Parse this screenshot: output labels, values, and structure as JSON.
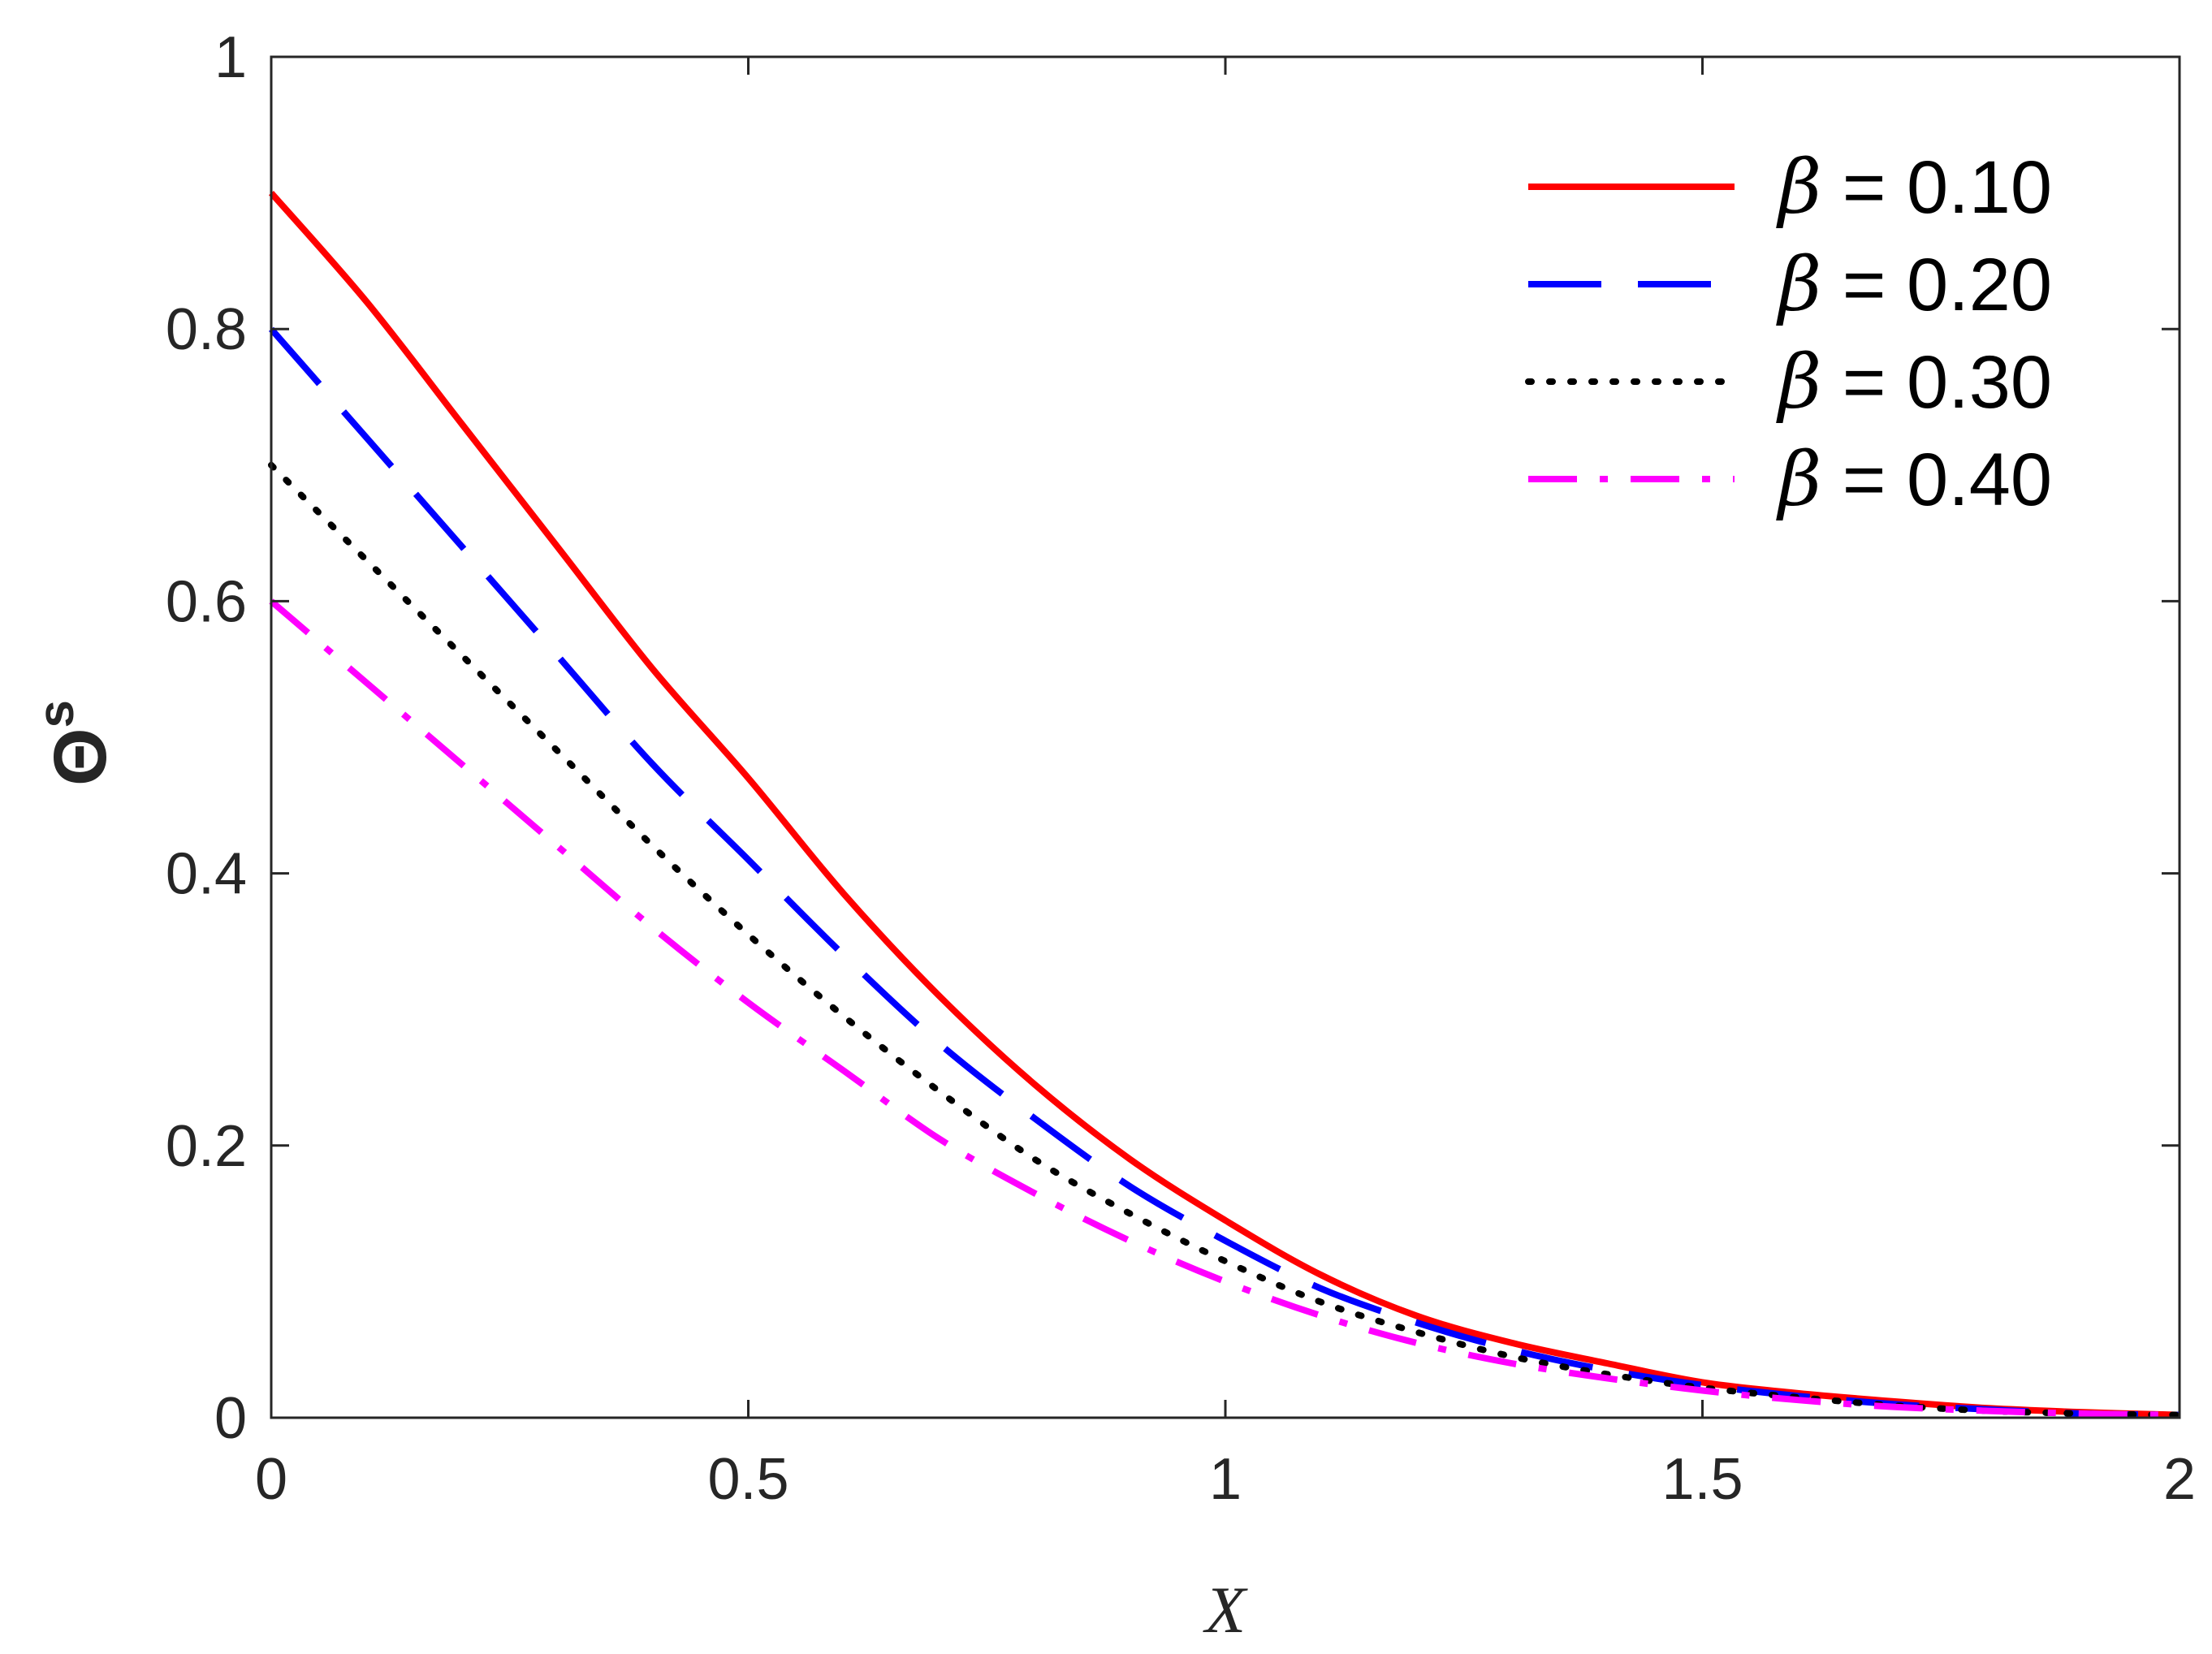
{
  "chart_data": {
    "type": "line",
    "title": "",
    "xlabel": "X",
    "ylabel": "Θ",
    "ylabel_superscript": "s",
    "xlim": [
      0,
      2
    ],
    "ylim": [
      0,
      1
    ],
    "grid": false,
    "legend_position": "top-right",
    "x_ticks": [
      0,
      0.5,
      1,
      1.5,
      2
    ],
    "x_tick_labels": [
      "0",
      "0.5",
      "1",
      "1.5",
      "2"
    ],
    "y_ticks": [
      0,
      0.2,
      0.4,
      0.6,
      0.8,
      1
    ],
    "y_tick_labels": [
      "0",
      "0.2",
      "0.4",
      "0.6",
      "0.8",
      "1"
    ],
    "x": [
      0,
      0.1,
      0.2,
      0.3,
      0.4,
      0.5,
      0.6,
      0.7,
      0.8,
      0.9,
      1.0,
      1.1,
      1.2,
      1.3,
      1.4,
      1.5,
      1.6,
      1.7,
      1.8,
      1.9,
      2.0
    ],
    "series": [
      {
        "name": "β = 0.10",
        "symbol": "β",
        "value_label": "= 0.10",
        "color": "#ff0000",
        "style": "solid",
        "values": [
          0.9,
          0.82,
          0.73,
          0.64,
          0.55,
          0.47,
          0.385,
          0.31,
          0.245,
          0.19,
          0.145,
          0.105,
          0.075,
          0.055,
          0.04,
          0.026,
          0.018,
          0.012,
          0.007,
          0.004,
          0.002
        ]
      },
      {
        "name": "β = 0.20",
        "symbol": "β",
        "value_label": "= 0.20",
        "color": "#0000ff",
        "style": "dashed",
        "values": [
          0.8,
          0.72,
          0.64,
          0.56,
          0.48,
          0.41,
          0.34,
          0.275,
          0.22,
          0.17,
          0.13,
          0.095,
          0.07,
          0.05,
          0.035,
          0.024,
          0.016,
          0.01,
          0.006,
          0.003,
          0.002
        ]
      },
      {
        "name": "β = 0.30",
        "symbol": "β",
        "value_label": "= 0.30",
        "color": "#000000",
        "style": "dotted",
        "values": [
          0.7,
          0.63,
          0.56,
          0.49,
          0.42,
          0.355,
          0.295,
          0.24,
          0.19,
          0.15,
          0.115,
          0.085,
          0.063,
          0.045,
          0.032,
          0.022,
          0.015,
          0.009,
          0.005,
          0.003,
          0.002
        ]
      },
      {
        "name": "β = 0.40",
        "symbol": "β",
        "value_label": "= 0.40",
        "color": "#ff00ff",
        "style": "dashdot",
        "values": [
          0.6,
          0.54,
          0.48,
          0.42,
          0.36,
          0.305,
          0.255,
          0.205,
          0.165,
          0.13,
          0.1,
          0.075,
          0.055,
          0.04,
          0.029,
          0.02,
          0.013,
          0.008,
          0.005,
          0.003,
          0.002
        ]
      }
    ]
  }
}
